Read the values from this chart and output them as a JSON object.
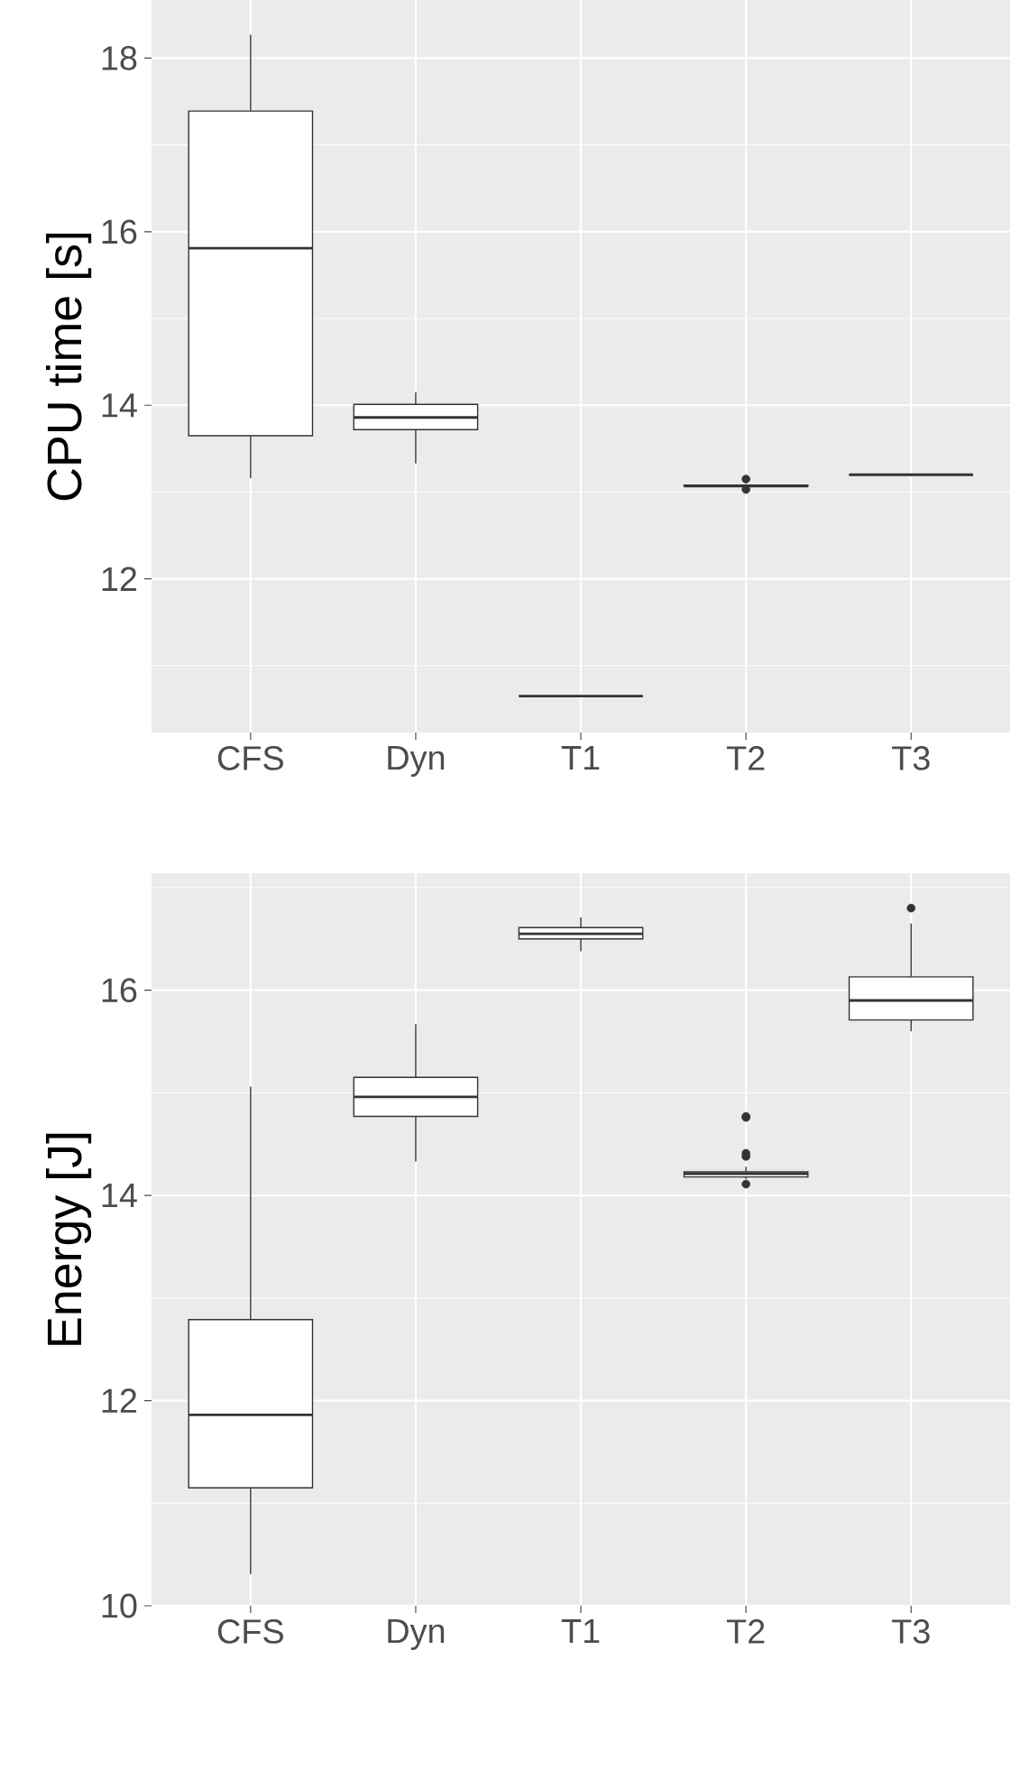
{
  "chart_data": [
    {
      "type": "box",
      "categories": [
        "CFS",
        "Dyn",
        "T1",
        "T2",
        "T3"
      ],
      "ylabel": "CPU time [s]",
      "ylim": [
        10.23,
        18.67
      ],
      "yticks": [
        12,
        14,
        16,
        18
      ],
      "grid": true,
      "boxes": [
        {
          "low": 13.16,
          "q1": 13.65,
          "median": 15.81,
          "q3": 17.39,
          "high": 18.27
        },
        {
          "low": 13.33,
          "q1": 13.72,
          "median": 13.86,
          "q3": 14.01,
          "high": 14.15
        },
        {
          "low": 10.64,
          "q1": 10.65,
          "median": 10.65,
          "q3": 10.65,
          "high": 10.66
        },
        {
          "low": 13.06,
          "q1": 13.07,
          "median": 13.07,
          "q3": 13.08,
          "high": 13.09,
          "outliers": [
            13.15,
            13.03
          ]
        },
        {
          "low": 13.19,
          "q1": 13.2,
          "median": 13.2,
          "q3": 13.2,
          "high": 13.21
        }
      ]
    },
    {
      "type": "box",
      "categories": [
        "CFS",
        "Dyn",
        "T1",
        "T2",
        "T3"
      ],
      "ylabel": "Energy [J]",
      "ylim": [
        10.0,
        17.14
      ],
      "yticks": [
        10,
        12,
        14,
        16
      ],
      "grid": true,
      "boxes": [
        {
          "low": 10.31,
          "q1": 11.15,
          "median": 11.86,
          "q3": 12.79,
          "high": 15.06
        },
        {
          "low": 14.33,
          "q1": 14.77,
          "median": 14.96,
          "q3": 15.15,
          "high": 15.67
        },
        {
          "low": 16.38,
          "q1": 16.5,
          "median": 16.55,
          "q3": 16.61,
          "high": 16.71
        },
        {
          "low": 14.16,
          "q1": 14.18,
          "median": 14.21,
          "q3": 14.23,
          "high": 14.28,
          "outliers": [
            14.77,
            14.76,
            14.41,
            14.38,
            14.11
          ]
        },
        {
          "low": 15.6,
          "q1": 15.71,
          "median": 15.9,
          "q3": 16.13,
          "high": 16.65,
          "outliers": [
            16.8
          ]
        }
      ]
    }
  ]
}
